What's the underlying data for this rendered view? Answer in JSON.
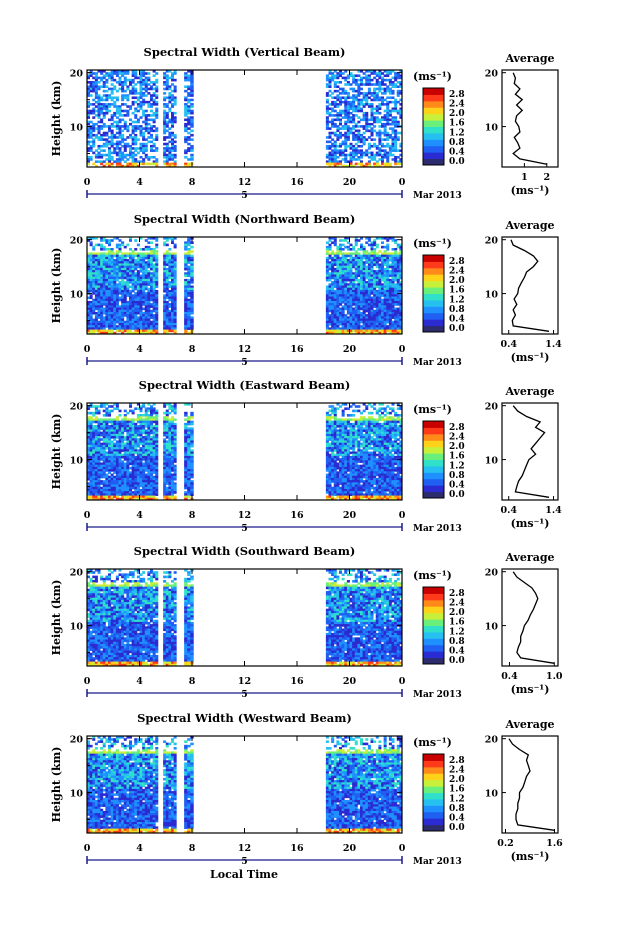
{
  "figure": {
    "xlabel": "Local Time",
    "date_label": "5",
    "month_label": "Mar 2013",
    "ylabel": "Height (km)",
    "units_label": "(ms⁻¹)",
    "average_title": "Average",
    "average_xlabel": "(ms⁻¹)"
  },
  "colors": {
    "scale": [
      "#2b2b6e",
      "#2a2bd0",
      "#1f5ff2",
      "#1e90ff",
      "#25c0f0",
      "#30e0c8",
      "#6af07a",
      "#c8f03a",
      "#ffd21a",
      "#ff8a1a",
      "#ff3a1a",
      "#c80000"
    ],
    "background": "#ffffff",
    "axis": "#000000",
    "profile_line": "#000000"
  },
  "chart_data": [
    {
      "type": "heatmap",
      "title": "Spectral Width (Vertical Beam)",
      "xlabel": "Local Time",
      "ylabel": "Height (km)",
      "x_ticks": [
        "0",
        "4",
        "8",
        "12",
        "16",
        "20",
        "0"
      ],
      "xlim": [
        0,
        24
      ],
      "y_ticks": [
        "10",
        "20"
      ],
      "ylim": [
        2.5,
        20.5
      ],
      "colorbar_ticks": [
        "0.0",
        "0.4",
        "0.8",
        "1.2",
        "1.6",
        "2.0",
        "2.4",
        "2.8"
      ],
      "data_intervals": [
        [
          0,
          5.4
        ],
        [
          5.8,
          6.8
        ],
        [
          7.4,
          8.1
        ],
        [
          18.2,
          24
        ]
      ],
      "profile": {
        "title": "Average",
        "xlabel": "(ms⁻¹)",
        "x_ticks": [
          "1",
          "2"
        ],
        "x_tick_values": [
          1,
          2
        ],
        "xlim": [
          0,
          2.5
        ],
        "y_ticks": [
          "10",
          "20"
        ],
        "ylim": [
          2.5,
          20.5
        ],
        "height": [
          3,
          4,
          5,
          6,
          7,
          8,
          9,
          10,
          11,
          12,
          13,
          14,
          15,
          16,
          17,
          18,
          19,
          20
        ],
        "value": [
          2.0,
          0.8,
          0.5,
          0.8,
          0.7,
          0.55,
          0.8,
          0.75,
          0.6,
          0.65,
          0.9,
          0.65,
          0.9,
          0.6,
          0.8,
          0.55,
          0.6,
          0.5
        ]
      }
    },
    {
      "type": "heatmap",
      "title": "Spectral Width (Northward Beam)",
      "xlabel": "Local Time",
      "ylabel": "Height (km)",
      "x_ticks": [
        "0",
        "4",
        "8",
        "12",
        "16",
        "20",
        "0"
      ],
      "xlim": [
        0,
        24
      ],
      "y_ticks": [
        "10",
        "20"
      ],
      "ylim": [
        2.5,
        20.5
      ],
      "colorbar_ticks": [
        "0.0",
        "0.4",
        "0.8",
        "1.2",
        "1.6",
        "2.0",
        "2.4",
        "2.8"
      ],
      "data_intervals": [
        [
          0,
          5.4
        ],
        [
          5.8,
          6.8
        ],
        [
          7.4,
          8.1
        ],
        [
          18.2,
          24
        ]
      ],
      "profile": {
        "title": "Average",
        "xlabel": "(ms⁻¹)",
        "x_ticks": [
          "0.4",
          "1.4"
        ],
        "x_tick_values": [
          0.4,
          1.4
        ],
        "xlim": [
          0.25,
          1.5
        ],
        "y_ticks": [
          "10",
          "20"
        ],
        "ylim": [
          2.5,
          20.5
        ],
        "height": [
          3,
          4,
          5,
          6,
          7,
          8,
          9,
          10,
          11,
          12,
          13,
          14,
          15,
          16,
          17,
          18,
          19,
          20
        ],
        "value": [
          1.3,
          0.5,
          0.48,
          0.55,
          0.5,
          0.58,
          0.52,
          0.6,
          0.62,
          0.68,
          0.75,
          0.8,
          0.95,
          1.05,
          0.95,
          0.75,
          0.5,
          0.45
        ]
      }
    },
    {
      "type": "heatmap",
      "title": "Spectral Width (Eastward Beam)",
      "xlabel": "Local Time",
      "ylabel": "Height (km)",
      "x_ticks": [
        "0",
        "4",
        "8",
        "12",
        "16",
        "20",
        "0"
      ],
      "xlim": [
        0,
        24
      ],
      "y_ticks": [
        "10",
        "20"
      ],
      "ylim": [
        2.5,
        20.5
      ],
      "colorbar_ticks": [
        "0.0",
        "0.4",
        "0.8",
        "1.2",
        "1.6",
        "2.0",
        "2.4",
        "2.8"
      ],
      "data_intervals": [
        [
          0,
          5.4
        ],
        [
          5.8,
          6.8
        ],
        [
          7.4,
          8.1
        ],
        [
          18.2,
          24
        ]
      ],
      "profile": {
        "title": "Average",
        "xlabel": "(ms⁻¹)",
        "x_ticks": [
          "0.4",
          "1.4"
        ],
        "x_tick_values": [
          0.4,
          1.4
        ],
        "xlim": [
          0.25,
          1.5
        ],
        "y_ticks": [
          "10",
          "20"
        ],
        "ylim": [
          2.5,
          20.5
        ],
        "height": [
          3,
          4,
          5,
          6,
          7,
          8,
          9,
          10,
          11,
          12,
          13,
          14,
          15,
          16,
          17,
          18,
          19,
          20
        ],
        "value": [
          1.3,
          0.55,
          0.58,
          0.62,
          0.7,
          0.75,
          0.8,
          0.85,
          1.0,
          0.9,
          1.0,
          1.1,
          1.2,
          1.0,
          1.1,
          0.8,
          0.6,
          0.5
        ]
      }
    },
    {
      "type": "heatmap",
      "title": "Spectral Width (Southward Beam)",
      "xlabel": "Local Time",
      "ylabel": "Height (km)",
      "x_ticks": [
        "0",
        "4",
        "8",
        "12",
        "16",
        "20",
        "0"
      ],
      "xlim": [
        0,
        24
      ],
      "y_ticks": [
        "10",
        "20"
      ],
      "ylim": [
        2.5,
        20.5
      ],
      "colorbar_ticks": [
        "0.0",
        "0.4",
        "0.8",
        "1.2",
        "1.6",
        "2.0",
        "2.4",
        "2.8"
      ],
      "data_intervals": [
        [
          0,
          5.4
        ],
        [
          5.8,
          6.8
        ],
        [
          7.4,
          8.1
        ],
        [
          18.2,
          24
        ]
      ],
      "profile": {
        "title": "Average",
        "xlabel": "(ms⁻¹)",
        "x_ticks": [
          "0.4",
          "1.0"
        ],
        "x_tick_values": [
          0.4,
          1.0
        ],
        "xlim": [
          0.3,
          1.05
        ],
        "y_ticks": [
          "10",
          "20"
        ],
        "ylim": [
          2.5,
          20.5
        ],
        "height": [
          3,
          4,
          5,
          6,
          7,
          8,
          9,
          10,
          11,
          12,
          13,
          14,
          15,
          16,
          17,
          18,
          19,
          20
        ],
        "value": [
          1.0,
          0.55,
          0.5,
          0.52,
          0.55,
          0.55,
          0.58,
          0.6,
          0.65,
          0.68,
          0.72,
          0.75,
          0.78,
          0.75,
          0.7,
          0.6,
          0.5,
          0.45
        ]
      }
    },
    {
      "type": "heatmap",
      "title": "Spectral Width (Westward Beam)",
      "xlabel": "Local Time",
      "ylabel": "Height (km)",
      "x_ticks": [
        "0",
        "4",
        "8",
        "12",
        "16",
        "20",
        "0"
      ],
      "xlim": [
        0,
        24
      ],
      "y_ticks": [
        "10",
        "20"
      ],
      "ylim": [
        2.5,
        20.5
      ],
      "colorbar_ticks": [
        "0.0",
        "0.4",
        "0.8",
        "1.2",
        "1.6",
        "2.0",
        "2.4",
        "2.8"
      ],
      "data_intervals": [
        [
          0,
          5.4
        ],
        [
          5.8,
          6.8
        ],
        [
          7.4,
          8.1
        ],
        [
          18.2,
          24
        ]
      ],
      "profile": {
        "title": "Average",
        "xlabel": "(ms⁻¹)",
        "x_ticks": [
          "0.2",
          "1.6"
        ],
        "x_tick_values": [
          0.2,
          1.6
        ],
        "xlim": [
          0.1,
          1.7
        ],
        "y_ticks": [
          "10",
          "20"
        ],
        "ylim": [
          2.5,
          20.5
        ],
        "height": [
          3,
          4,
          5,
          6,
          7,
          8,
          9,
          10,
          11,
          12,
          13,
          14,
          15,
          16,
          17,
          18,
          19,
          20
        ],
        "value": [
          1.6,
          0.55,
          0.5,
          0.5,
          0.55,
          0.55,
          0.6,
          0.6,
          0.7,
          0.75,
          0.8,
          0.9,
          0.85,
          0.8,
          0.85,
          0.6,
          0.4,
          0.3
        ]
      }
    }
  ]
}
